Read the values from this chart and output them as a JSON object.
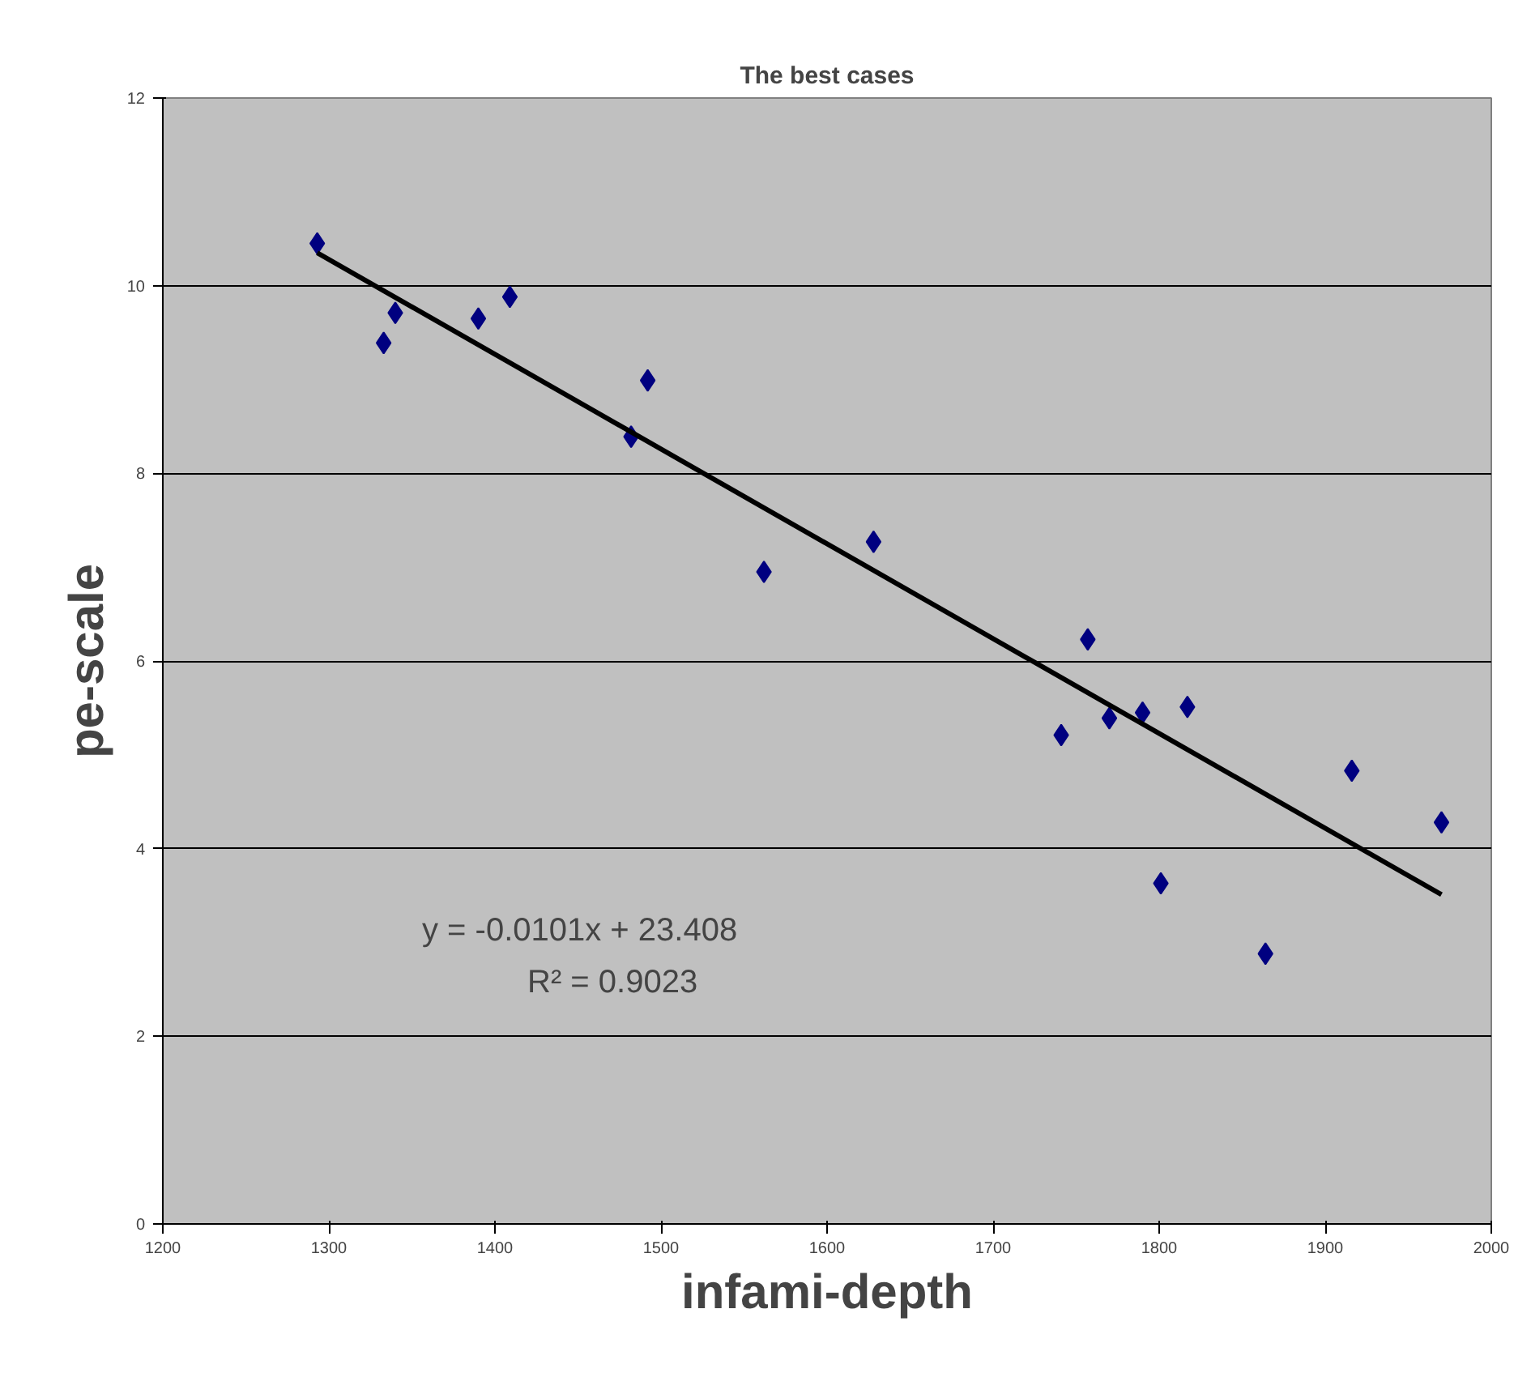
{
  "chart_data": {
    "type": "scatter",
    "title": "The best cases",
    "xlabel": "infami-depth",
    "ylabel": "pe-scale",
    "annotations": [
      "y = -0.0101x + 23.408",
      "R² = 0.9023"
    ],
    "xlim": [
      1200,
      2000
    ],
    "xticks": [
      1200,
      1300,
      1400,
      1500,
      1600,
      1700,
      1800,
      1900,
      2000
    ],
    "ylim": [
      0,
      12
    ],
    "yticks": [
      0,
      2,
      4,
      6,
      8,
      10,
      12
    ],
    "grid": "y",
    "series": [
      {
        "color": "#000080",
        "marker": "diamond",
        "x": [
          1293,
          1333,
          1340,
          1390,
          1409,
          1482,
          1492,
          1562,
          1628,
          1741,
          1757,
          1770,
          1790,
          1801,
          1817,
          1864,
          1916,
          1970
        ],
        "values": [
          10.45,
          9.39,
          9.71,
          9.65,
          9.88,
          8.39,
          8.99,
          6.95,
          7.27,
          5.21,
          6.23,
          5.39,
          5.45,
          3.63,
          5.51,
          2.88,
          4.83,
          4.28
        ]
      },
      {
        "type": "line",
        "color": "#000000",
        "line_style": "solid",
        "x": [
          1293,
          1970
        ],
        "values": [
          10.35,
          3.51
        ]
      }
    ]
  }
}
